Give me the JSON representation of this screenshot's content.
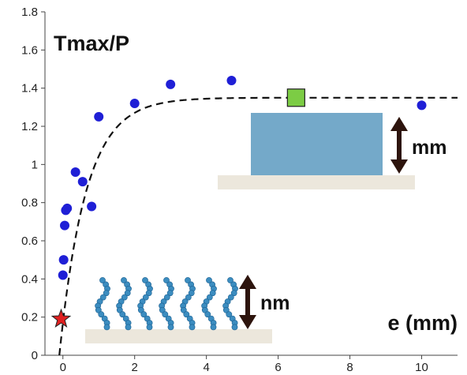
{
  "chart_data": {
    "type": "scatter",
    "title": "Tmax/P",
    "xlabel": "e (mm)",
    "ylabel": "",
    "xlim": [
      -0.5,
      11
    ],
    "ylim": [
      0,
      1.8
    ],
    "xticks": [
      0,
      2,
      4,
      6,
      8,
      10
    ],
    "yticks": [
      0,
      0.2,
      0.4,
      0.6,
      0.8,
      1,
      1.2,
      1.4,
      1.6,
      1.8
    ],
    "xtick_labels": [
      "0",
      "2",
      "4",
      "6",
      "8",
      "10"
    ],
    "ytick_labels": [
      "0",
      "0.2",
      "0.4",
      "0.6",
      "0.8",
      "1",
      "1.2",
      "1.4",
      "1.6",
      "1.8"
    ],
    "grid": false,
    "series": [
      {
        "marker": "circle",
        "color": "#1f1fd6",
        "points": [
          {
            "x": 0.0,
            "y": 0.42
          },
          {
            "x": 0.02,
            "y": 0.5
          },
          {
            "x": 0.05,
            "y": 0.68
          },
          {
            "x": 0.08,
            "y": 0.76
          },
          {
            "x": 0.12,
            "y": 0.77
          },
          {
            "x": 0.35,
            "y": 0.96
          },
          {
            "x": 0.55,
            "y": 0.91
          },
          {
            "x": 0.8,
            "y": 0.78
          },
          {
            "x": 1.0,
            "y": 1.25
          },
          {
            "x": 2.0,
            "y": 1.32
          },
          {
            "x": 3.0,
            "y": 1.42
          },
          {
            "x": 4.7,
            "y": 1.44
          },
          {
            "x": 10.0,
            "y": 1.31
          }
        ]
      },
      {
        "marker": "star",
        "color": "#e02020",
        "points": [
          {
            "x": -0.05,
            "y": 0.19
          }
        ]
      },
      {
        "marker": "square",
        "color": "#7ccc44",
        "points": [
          {
            "x": 6.5,
            "y": 1.35
          }
        ]
      },
      {
        "marker": "dashed-fit",
        "color": "#111111",
        "fit": {
          "plateau": 1.35,
          "rate": 1.35,
          "x_start": -0.1,
          "x_end": 11
        }
      }
    ],
    "annotations": {
      "mm_label": "mm",
      "nm_label": "nm",
      "block_color": "#74a9c9",
      "substrate_color": "#ece7dc",
      "chain_color": "#3c8dc0",
      "arrow_color": "#2d140d"
    }
  }
}
